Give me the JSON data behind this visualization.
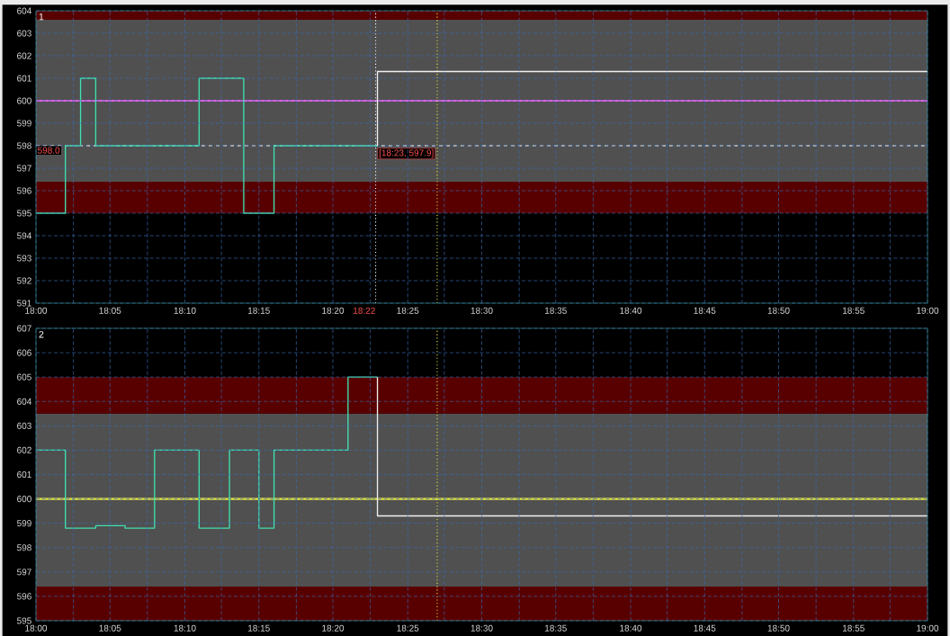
{
  "chart_data": [
    {
      "type": "step",
      "xlim": [
        18,
        19
      ],
      "ylim": [
        591,
        604
      ],
      "xticks": [
        {
          "value": 18,
          "label": "18:00"
        },
        {
          "value": 18.042,
          "label": null
        },
        {
          "value": 18.083,
          "label": "18:05"
        },
        {
          "value": 18.125,
          "label": null
        },
        {
          "value": 18.167,
          "label": "18:10"
        },
        {
          "value": 18.208,
          "label": null
        },
        {
          "value": 18.25,
          "label": "18:15"
        },
        {
          "value": 18.292,
          "label": null
        },
        {
          "value": 18.333,
          "label": "18:20"
        },
        {
          "value": 18.375,
          "label": null
        },
        {
          "value": 18.417,
          "label": "18:25"
        },
        {
          "value": 18.458,
          "label": null
        },
        {
          "value": 18.5,
          "label": "18:30"
        },
        {
          "value": 18.542,
          "label": null
        },
        {
          "value": 18.583,
          "label": "18:35"
        },
        {
          "value": 18.625,
          "label": null
        },
        {
          "value": 18.667,
          "label": "18:40"
        },
        {
          "value": 18.708,
          "label": null
        },
        {
          "value": 18.75,
          "label": "18:45"
        },
        {
          "value": 18.792,
          "label": null
        },
        {
          "value": 18.833,
          "label": "18:50"
        },
        {
          "value": 18.875,
          "label": null
        },
        {
          "value": 18.917,
          "label": "18:55"
        },
        {
          "value": 18.958,
          "label": null
        },
        {
          "value": 19,
          "label": "19:00"
        }
      ],
      "yticks": [
        591,
        592,
        593,
        594,
        595,
        596,
        597,
        598,
        599,
        600,
        601,
        602,
        603,
        604
      ],
      "grid": true,
      "marker": "none",
      "line_style": "solid",
      "series": [
        {
          "color": "#40e0b0",
          "x": [
            18,
            18.033,
            18.05,
            18.067,
            18.183,
            18.233,
            18.267,
            18.383
          ],
          "values": [
            595,
            598,
            601,
            598,
            601,
            595,
            598,
            598
          ]
        },
        {
          "color": "#f0f0f0",
          "x": [
            18.383,
            18.383,
            19
          ],
          "values": [
            598,
            601.3,
            601.3
          ]
        }
      ],
      "bands": [
        {
          "axis": "y",
          "from": 596.4,
          "to": 603.6,
          "color": "#505050"
        },
        {
          "axis": "y",
          "from": 603.6,
          "to": 604,
          "color": "#580000"
        },
        {
          "axis": "y",
          "from": 595,
          "to": 596.4,
          "color": "#580000"
        }
      ],
      "ref_lines": [
        {
          "axis": "y",
          "value": 600,
          "color": "#e060e0",
          "line_style": "solid"
        },
        {
          "axis": "y",
          "value": 598,
          "color": "#ffffff",
          "line_style": "dashed",
          "label": "598.0"
        },
        {
          "axis": "x",
          "value": 18.381,
          "color": "#ffffff",
          "line_style": "dotted",
          "label": "18:22"
        },
        {
          "axis": "x",
          "value": 18.45,
          "color": "#f0f040",
          "line_style": "dotted"
        }
      ],
      "annotations": [
        "1",
        {
          "text": "[18:23, 597.9]",
          "x": 18.383,
          "y": 597.9
        }
      ]
    },
    {
      "type": "step",
      "xlim": [
        18,
        19
      ],
      "ylim": [
        595,
        607
      ],
      "xticks": [
        {
          "value": 18,
          "label": "18:00"
        },
        {
          "value": 18.042,
          "label": null
        },
        {
          "value": 18.083,
          "label": "18:05"
        },
        {
          "value": 18.125,
          "label": null
        },
        {
          "value": 18.167,
          "label": "18:10"
        },
        {
          "value": 18.208,
          "label": null
        },
        {
          "value": 18.25,
          "label": "18:15"
        },
        {
          "value": 18.292,
          "label": null
        },
        {
          "value": 18.333,
          "label": "18:20"
        },
        {
          "value": 18.375,
          "label": null
        },
        {
          "value": 18.417,
          "label": "18:25"
        },
        {
          "value": 18.458,
          "label": null
        },
        {
          "value": 18.5,
          "label": "18:30"
        },
        {
          "value": 18.542,
          "label": null
        },
        {
          "value": 18.583,
          "label": "18:35"
        },
        {
          "value": 18.625,
          "label": null
        },
        {
          "value": 18.667,
          "label": "18:40"
        },
        {
          "value": 18.708,
          "label": null
        },
        {
          "value": 18.75,
          "label": "18:45"
        },
        {
          "value": 18.792,
          "label": null
        },
        {
          "value": 18.833,
          "label": "18:50"
        },
        {
          "value": 18.875,
          "label": null
        },
        {
          "value": 18.917,
          "label": "18:55"
        },
        {
          "value": 18.958,
          "label": null
        },
        {
          "value": 19,
          "label": "19:00"
        }
      ],
      "yticks": [
        595,
        596,
        597,
        598,
        599,
        600,
        601,
        602,
        603,
        604,
        605,
        606,
        607
      ],
      "grid": true,
      "marker": "none",
      "line_style": "solid",
      "series": [
        {
          "color": "#40e0b0",
          "x": [
            18,
            18.033,
            18.067,
            18.1,
            18.133,
            18.183,
            18.217,
            18.25,
            18.267,
            18.35,
            18.383
          ],
          "values": [
            602,
            598.8,
            598.9,
            598.8,
            602,
            598.8,
            602,
            598.8,
            602,
            605,
            605
          ]
        },
        {
          "color": "#f0f0f0",
          "x": [
            18.383,
            18.383,
            19
          ],
          "values": [
            605,
            599.3,
            599.3
          ]
        }
      ],
      "bands": [
        {
          "axis": "y",
          "from": 596.4,
          "to": 603.5,
          "color": "#505050"
        },
        {
          "axis": "y",
          "from": 603.5,
          "to": 605,
          "color": "#580000"
        },
        {
          "axis": "y",
          "from": 595,
          "to": 596.4,
          "color": "#580000"
        }
      ],
      "ref_lines": [
        {
          "axis": "y",
          "value": 600,
          "color": "#e8e840",
          "line_style": "solid"
        },
        {
          "axis": "x",
          "value": 18.45,
          "color": "#f0f040",
          "line_style": "dotted"
        }
      ],
      "annotations": [
        "2"
      ]
    }
  ]
}
